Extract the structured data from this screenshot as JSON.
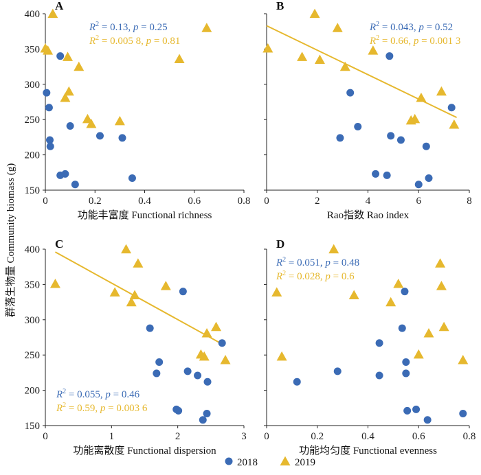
{
  "ylabel": "群落生物量 Community biomass (g)",
  "legend": {
    "items": [
      {
        "label": "2018",
        "color": "#3b6bb5",
        "marker": "circle"
      },
      {
        "label": "2019",
        "color": "#e6b82e",
        "marker": "triangle"
      }
    ]
  },
  "colors": {
    "y2018": "#3b6bb5",
    "y2019": "#e6b82e"
  },
  "chart_data": [
    {
      "type": "scatter",
      "panel": "A",
      "xlabel": "功能丰富度 Functional richness",
      "xlim": [
        0,
        0.8
      ],
      "ylim": [
        150,
        400
      ],
      "xticks": [
        "0",
        "0.2",
        "0.4",
        "0.6",
        "0.8"
      ],
      "yticks": [
        "150",
        "200",
        "250",
        "300",
        "350",
        "400"
      ],
      "stats": [
        {
          "r2": "0.13",
          "p": "0.25"
        },
        {
          "r2": "0.005 8",
          "p": "0.81"
        }
      ],
      "series": [
        {
          "name": "2018",
          "marker": "circle",
          "points": [
            [
              0.005,
              288
            ],
            [
              0.015,
              267
            ],
            [
              0.018,
              221
            ],
            [
              0.02,
              212
            ],
            [
              0.06,
              340
            ],
            [
              0.06,
              171
            ],
            [
              0.08,
              173
            ],
            [
              0.1,
              241
            ],
            [
              0.12,
              158
            ],
            [
              0.22,
              227
            ],
            [
              0.31,
              224
            ],
            [
              0.35,
              167
            ]
          ]
        },
        {
          "name": "2019",
          "marker": "triangle",
          "points": [
            [
              0.0,
              350
            ],
            [
              0.01,
              347
            ],
            [
              0.03,
              399
            ],
            [
              0.08,
              280
            ],
            [
              0.09,
              338
            ],
            [
              0.095,
              289
            ],
            [
              0.135,
              324
            ],
            [
              0.17,
              250
            ],
            [
              0.185,
              243
            ],
            [
              0.3,
              247
            ],
            [
              0.54,
              335
            ],
            [
              0.65,
              379
            ]
          ]
        }
      ],
      "trendline": null
    },
    {
      "type": "scatter",
      "panel": "B",
      "xlabel": "Rao指数 Rao index",
      "xlim": [
        0,
        8
      ],
      "ylim": [
        150,
        400
      ],
      "xticks": [
        "0",
        "2",
        "4",
        "6",
        "8"
      ],
      "yticks": [],
      "stats": [
        {
          "r2": "0.043",
          "p": "0.52"
        },
        {
          "r2": "0.66",
          "p": "0.001 3"
        }
      ],
      "series": [
        {
          "name": "2018",
          "marker": "circle",
          "points": [
            [
              2.9,
              224
            ],
            [
              3.3,
              288
            ],
            [
              3.6,
              240
            ],
            [
              4.3,
              173
            ],
            [
              4.75,
              171
            ],
            [
              4.85,
              340
            ],
            [
              4.9,
              227
            ],
            [
              5.3,
              221
            ],
            [
              6.0,
              158
            ],
            [
              6.3,
              212
            ],
            [
              6.4,
              167
            ],
            [
              7.3,
              267
            ]
          ]
        },
        {
          "name": "2019",
          "marker": "triangle",
          "points": [
            [
              0.05,
              350
            ],
            [
              1.4,
              338
            ],
            [
              1.9,
              399
            ],
            [
              2.1,
              334
            ],
            [
              2.8,
              379
            ],
            [
              3.1,
              324
            ],
            [
              4.2,
              347
            ],
            [
              5.7,
              248
            ],
            [
              5.85,
              250
            ],
            [
              6.1,
              280
            ],
            [
              6.9,
              289
            ],
            [
              7.4,
              242
            ]
          ]
        }
      ],
      "trendline": {
        "series": "2019",
        "from": [
          0,
          383
        ],
        "to": [
          7.5,
          253
        ]
      }
    },
    {
      "type": "scatter",
      "panel": "C",
      "xlabel": "功能离散度 Functional dispersion",
      "xlim": [
        0,
        3
      ],
      "ylim": [
        150,
        400
      ],
      "xticks": [
        "0",
        "1",
        "2",
        "3"
      ],
      "yticks": [
        "150",
        "200",
        "250",
        "300",
        "350",
        "400"
      ],
      "stats": [
        {
          "r2": "0.055",
          "p": "0.46"
        },
        {
          "r2": "0.59",
          "p": "0.003 6"
        }
      ],
      "series": [
        {
          "name": "2018",
          "marker": "circle",
          "points": [
            [
              1.58,
              288
            ],
            [
              1.68,
              224
            ],
            [
              1.72,
              240
            ],
            [
              1.98,
              173
            ],
            [
              2.01,
              171
            ],
            [
              2.08,
              340
            ],
            [
              2.15,
              227
            ],
            [
              2.3,
              221
            ],
            [
              2.38,
              158
            ],
            [
              2.44,
              167
            ],
            [
              2.45,
              212
            ],
            [
              2.67,
              267
            ]
          ]
        },
        {
          "name": "2019",
          "marker": "triangle",
          "points": [
            [
              0.15,
              350
            ],
            [
              1.05,
              338
            ],
            [
              1.22,
              399
            ],
            [
              1.3,
              324
            ],
            [
              1.35,
              334
            ],
            [
              1.4,
              379
            ],
            [
              1.82,
              347
            ],
            [
              2.35,
              250
            ],
            [
              2.4,
              247
            ],
            [
              2.44,
              280
            ],
            [
              2.58,
              289
            ],
            [
              2.72,
              242
            ]
          ]
        }
      ],
      "trendline": {
        "series": "2019",
        "from": [
          0.15,
          396
        ],
        "to": [
          2.68,
          265
        ]
      }
    },
    {
      "type": "scatter",
      "panel": "D",
      "xlabel": "功能均匀度 Functional evenness",
      "xlim": [
        0,
        0.8
      ],
      "ylim": [
        150,
        400
      ],
      "xticks": [
        "0",
        "0.2",
        "0.4",
        "0.6",
        "0.8"
      ],
      "yticks": [],
      "stats": [
        {
          "r2": "0.051",
          "p": "0.48"
        },
        {
          "r2": "0.028",
          "p": "0.6"
        }
      ],
      "series": [
        {
          "name": "2018",
          "marker": "circle",
          "points": [
            [
              0.12,
              212
            ],
            [
              0.28,
              227
            ],
            [
              0.445,
              267
            ],
            [
              0.445,
              221
            ],
            [
              0.535,
              288
            ],
            [
              0.545,
              340
            ],
            [
              0.55,
              240
            ],
            [
              0.55,
              224
            ],
            [
              0.555,
              171
            ],
            [
              0.59,
              173
            ],
            [
              0.635,
              158
            ],
            [
              0.775,
              167
            ]
          ]
        },
        {
          "name": "2019",
          "marker": "triangle",
          "points": [
            [
              0.04,
              338
            ],
            [
              0.06,
              247
            ],
            [
              0.265,
              399
            ],
            [
              0.345,
              334
            ],
            [
              0.49,
              324
            ],
            [
              0.52,
              350
            ],
            [
              0.6,
              250
            ],
            [
              0.64,
              280
            ],
            [
              0.685,
              379
            ],
            [
              0.69,
              347
            ],
            [
              0.7,
              289
            ],
            [
              0.775,
              242
            ]
          ]
        }
      ],
      "trendline": null
    }
  ]
}
